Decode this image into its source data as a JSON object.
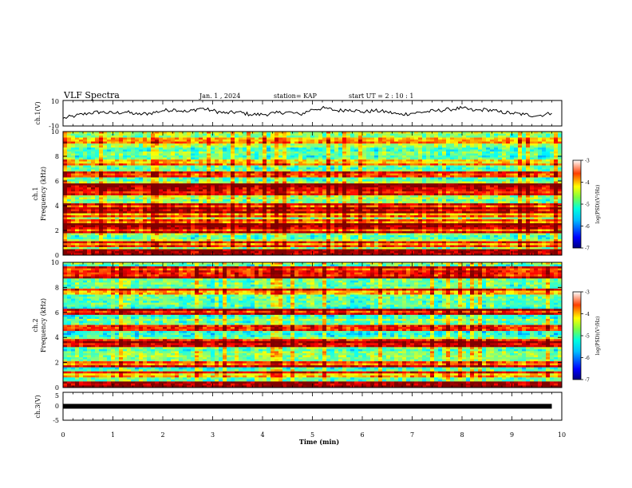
{
  "header": {
    "title": "VLF Spectra",
    "date": "Jan. 1 , 2024",
    "station": "station= KAP",
    "start": "start UT = 2 : 10 : 1"
  },
  "colors": {
    "colormap": [
      "#00007f",
      "#0000ff",
      "#007fff",
      "#00ffff",
      "#7fff7f",
      "#ffff00",
      "#ff7f00",
      "#ff0000",
      "#7f0000"
    ]
  },
  "chart_data": [
    {
      "type": "line",
      "panel": "ch1-waveform",
      "ylabel": "ch.1(V)",
      "ylim": [
        -10,
        10
      ],
      "yticks": [
        "10",
        "-10"
      ],
      "xlim": [
        0,
        10
      ],
      "x": [
        0,
        0.25,
        0.5,
        0.75,
        1.0,
        1.25,
        1.5,
        1.75,
        2.0,
        2.25,
        2.5,
        2.75,
        3.0,
        3.25,
        3.5,
        3.75,
        4.0,
        4.25,
        4.5,
        4.75,
        5.0,
        5.25,
        5.5,
        5.75,
        6.0,
        6.25,
        6.5,
        6.75,
        7.0,
        7.25,
        7.5,
        7.75,
        8.0,
        8.25,
        8.5,
        8.75,
        9.0,
        9.25,
        9.5,
        9.8
      ],
      "y": [
        -4,
        -2,
        0,
        1,
        0,
        1,
        -1,
        0,
        2,
        3,
        1,
        4,
        2,
        0,
        1,
        -1,
        -1,
        0,
        1,
        -1,
        3,
        4,
        2,
        3,
        1,
        2,
        1,
        -1,
        0,
        1,
        2,
        3,
        4,
        2,
        3,
        1,
        0,
        -1,
        -2,
        0
      ]
    },
    {
      "type": "heatmap",
      "panel": "ch1-spectrogram",
      "ylabel": "ch.1",
      "ylabel2": "Frequency (kHz)",
      "xlim": [
        0,
        10
      ],
      "ylim": [
        0,
        10
      ],
      "yticks": [
        "0",
        "2",
        "4",
        "6",
        "8",
        "10"
      ],
      "zlim": [
        -7,
        -3
      ],
      "colorbar_label": "log(PSD)(V²/Hz)",
      "colorbar_ticks": [
        "-3",
        "-4",
        "-5",
        "-6",
        "-7"
      ],
      "background_level": -5.0,
      "bands": [
        {
          "f": 0.3,
          "level": -3.6
        },
        {
          "f": 0.9,
          "level": -4.2
        },
        {
          "f": 2.0,
          "level": -3.8
        },
        {
          "f": 2.3,
          "level": -3.4
        },
        {
          "f": 2.7,
          "level": -4.1
        },
        {
          "f": 3.3,
          "level": -4.3
        },
        {
          "f": 3.6,
          "level": -3.4
        },
        {
          "f": 4.0,
          "level": -3.9
        },
        {
          "f": 5.1,
          "level": -3.8
        },
        {
          "f": 5.5,
          "level": -3.5
        },
        {
          "f": 6.5,
          "level": -4.0
        },
        {
          "f": 7.5,
          "level": -4.6
        },
        {
          "f": 9.3,
          "level": -4.4
        }
      ]
    },
    {
      "type": "heatmap",
      "panel": "ch2-spectrogram",
      "ylabel": "ch.2",
      "ylabel2": "Frequency (kHz)",
      "xlim": [
        0,
        10
      ],
      "ylim": [
        0,
        10
      ],
      "yticks": [
        "0",
        "2",
        "4",
        "6",
        "8",
        "10"
      ],
      "zlim": [
        -7,
        -3
      ],
      "colorbar_label": "log(PSD)(V²/Hz)",
      "colorbar_ticks": [
        "-3",
        "-4",
        "-5",
        "-6",
        "-7"
      ],
      "background_level": -5.1,
      "bands": [
        {
          "f": 0.3,
          "level": -3.6
        },
        {
          "f": 1.0,
          "level": -4.3
        },
        {
          "f": 1.9,
          "level": -3.9
        },
        {
          "f": 3.4,
          "level": -3.6
        },
        {
          "f": 3.7,
          "level": -3.9
        },
        {
          "f": 4.7,
          "level": -4.1
        },
        {
          "f": 6.0,
          "level": -3.8
        },
        {
          "f": 7.6,
          "level": -4.2
        },
        {
          "f": 9.0,
          "level": -3.7
        },
        {
          "f": 9.4,
          "level": -4.0
        }
      ]
    },
    {
      "type": "line",
      "panel": "ch3-waveform",
      "ylabel": "ch.3(V)",
      "ylim": [
        -5,
        5
      ],
      "yticks": [
        "5",
        "0",
        "-5"
      ],
      "xlim": [
        0,
        10
      ],
      "x": [
        0,
        9.8
      ],
      "y": [
        0,
        0
      ]
    }
  ],
  "xaxis": {
    "label": "Time (min)",
    "ticks": [
      "0",
      "1",
      "2",
      "3",
      "4",
      "5",
      "6",
      "7",
      "8",
      "9",
      "10"
    ]
  }
}
